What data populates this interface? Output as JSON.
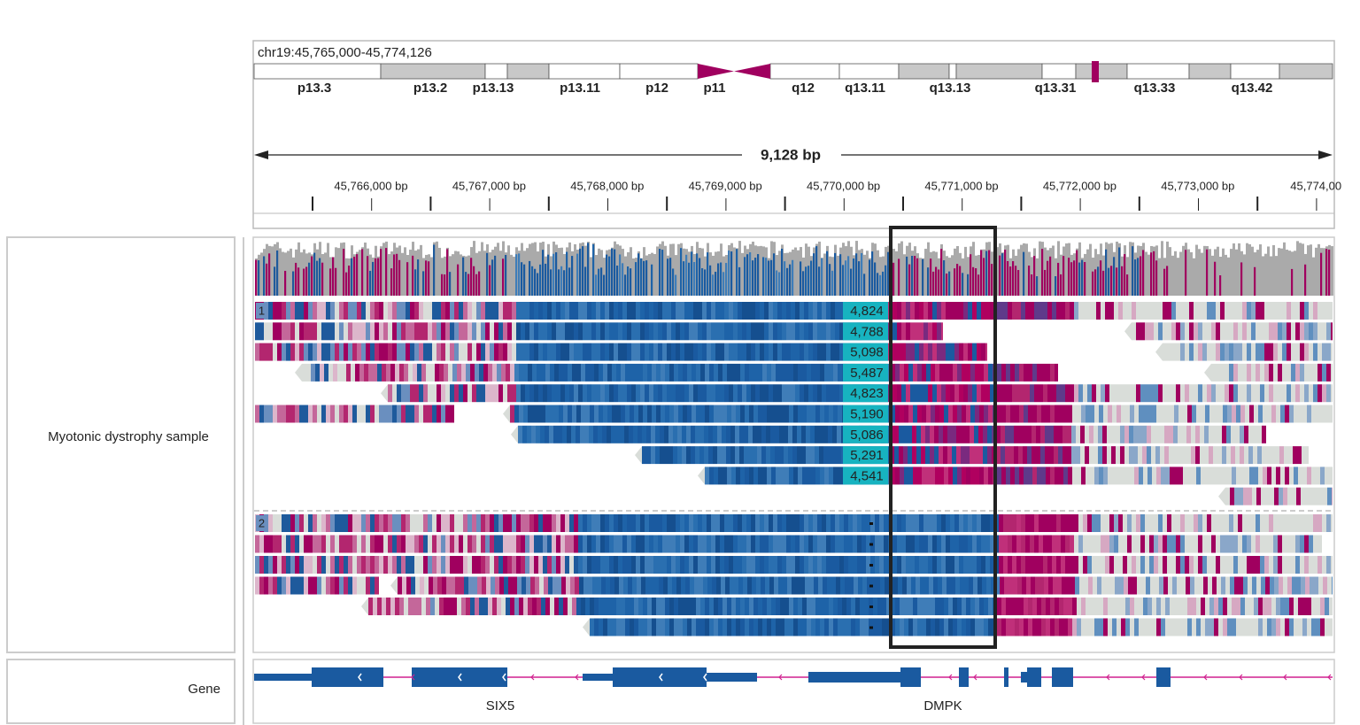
{
  "locus": "chr19:45,765,000-45,774,126",
  "cytobands": [
    "p13.3",
    "p13.2",
    "p13.13",
    "p13.11",
    "p12",
    "p11",
    "q12",
    "q13.11",
    "q13.13",
    "q13.31",
    "q13.33",
    "q13.42"
  ],
  "span": "9,128 bp",
  "ruler": [
    "45,766,000 bp",
    "45,767,000 bp",
    "45,768,000 bp",
    "45,769,000 bp",
    "45,770,000 bp",
    "45,771,000 bp",
    "45,772,000 bp",
    "45,773,000 bp",
    "45,774,00"
  ],
  "tracks": {
    "sample": {
      "name": "Myotonic dystrophy sample",
      "groups": [
        {
          "label": "1",
          "insertions": [
            "4,824",
            "4,788",
            "5,098",
            "5,487",
            "4,823",
            "5,190",
            "5,086",
            "5,291",
            "4,541"
          ]
        },
        {
          "label": "2"
        }
      ]
    },
    "gene": {
      "name": "Gene",
      "genes": [
        "SIX5",
        "DMPK"
      ]
    }
  }
}
